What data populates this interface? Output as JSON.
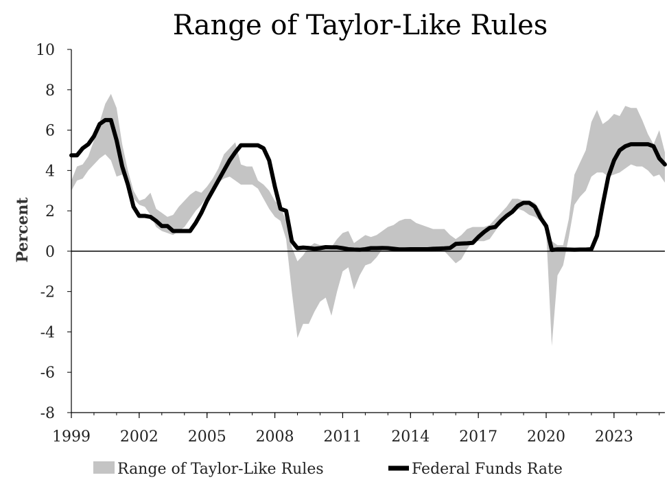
{
  "chart_data": {
    "type": "area",
    "title": "Range of Taylor-Like Rules",
    "xlabel": "",
    "ylabel": "Percent",
    "xlim": [
      1999.0,
      2025.25
    ],
    "ylim": [
      -8,
      10
    ],
    "y_ticks": [
      -8,
      -6,
      -4,
      -2,
      0,
      2,
      4,
      6,
      8,
      10
    ],
    "x_ticks": [
      1999,
      2002,
      2005,
      2008,
      2011,
      2014,
      2017,
      2020,
      2023
    ],
    "x_tick_labels": [
      "1999",
      "2002",
      "2005",
      "2008",
      "2011",
      "2014",
      "2017",
      "2020",
      "2023"
    ],
    "zero_line": true,
    "grid": false,
    "legend_position": "bottom",
    "colors": {
      "range": "#c4c4c4",
      "fed_funds": "#000000"
    },
    "series": [
      {
        "name": "Range of Taylor-Like Rules",
        "kind": "band",
        "x": [
          1999.0,
          1999.25,
          1999.5,
          1999.75,
          2000.0,
          2000.25,
          2000.5,
          2000.75,
          2001.0,
          2001.25,
          2001.5,
          2001.75,
          2002.0,
          2002.25,
          2002.5,
          2002.75,
          2003.0,
          2003.25,
          2003.5,
          2003.75,
          2004.0,
          2004.25,
          2004.5,
          2004.75,
          2005.0,
          2005.25,
          2005.5,
          2005.75,
          2006.0,
          2006.25,
          2006.5,
          2006.75,
          2007.0,
          2007.25,
          2007.5,
          2007.75,
          2008.0,
          2008.25,
          2008.5,
          2008.75,
          2009.0,
          2009.25,
          2009.5,
          2009.75,
          2010.0,
          2010.25,
          2010.5,
          2010.75,
          2011.0,
          2011.25,
          2011.5,
          2011.75,
          2012.0,
          2012.25,
          2012.5,
          2012.75,
          2013.0,
          2013.25,
          2013.5,
          2013.75,
          2014.0,
          2014.25,
          2014.5,
          2014.75,
          2015.0,
          2015.25,
          2015.5,
          2015.75,
          2016.0,
          2016.25,
          2016.5,
          2016.75,
          2017.0,
          2017.25,
          2017.5,
          2017.75,
          2018.0,
          2018.25,
          2018.5,
          2018.75,
          2019.0,
          2019.25,
          2019.5,
          2019.75,
          2020.0,
          2020.25,
          2020.5,
          2020.75,
          2021.0,
          2021.25,
          2021.5,
          2021.75,
          2022.0,
          2022.25,
          2022.5,
          2022.75,
          2023.0,
          2023.25,
          2023.5,
          2023.75,
          2024.0,
          2024.25,
          2024.5,
          2024.75,
          2025.0,
          2025.25
        ],
        "low": [
          3.0,
          3.5,
          3.6,
          4.0,
          4.3,
          4.6,
          4.8,
          4.5,
          3.7,
          3.8,
          3.2,
          2.6,
          2.3,
          2.2,
          1.8,
          1.2,
          1.0,
          0.9,
          0.8,
          1.0,
          1.2,
          1.6,
          2.0,
          2.3,
          2.7,
          3.1,
          3.4,
          3.6,
          3.7,
          3.5,
          3.3,
          3.3,
          3.3,
          3.1,
          2.6,
          2.1,
          1.7,
          1.5,
          0.6,
          -2.0,
          -4.3,
          -3.6,
          -3.6,
          -3.0,
          -2.5,
          -2.3,
          -3.2,
          -2.0,
          -1.0,
          -0.8,
          -1.9,
          -1.2,
          -0.7,
          -0.6,
          -0.3,
          0.1,
          0.1,
          0.1,
          0.1,
          0.1,
          0.2,
          0.2,
          0.1,
          0.0,
          0.0,
          0.0,
          0.0,
          -0.3,
          -0.6,
          -0.4,
          0.1,
          0.5,
          0.5,
          0.5,
          0.6,
          1.0,
          1.4,
          1.8,
          2.1,
          2.1,
          2.0,
          1.8,
          1.7,
          1.5,
          1.0,
          -4.7,
          -1.2,
          -0.7,
          0.7,
          2.3,
          2.7,
          3.0,
          3.7,
          3.9,
          3.9,
          3.7,
          3.8,
          3.9,
          4.1,
          4.3,
          4.2,
          4.2,
          4.0,
          3.7,
          3.8,
          3.4
        ],
        "high": [
          3.5,
          4.2,
          4.3,
          4.7,
          5.5,
          6.4,
          7.3,
          7.8,
          7.1,
          5.3,
          4.0,
          3.0,
          2.5,
          2.6,
          2.9,
          2.1,
          1.9,
          1.7,
          1.8,
          2.2,
          2.5,
          2.8,
          3.0,
          2.9,
          3.2,
          3.6,
          4.1,
          4.8,
          5.1,
          5.4,
          4.3,
          4.2,
          4.2,
          3.5,
          3.3,
          3.0,
          2.5,
          2.2,
          1.5,
          0.2,
          -0.5,
          -0.2,
          0.2,
          0.4,
          0.3,
          0.3,
          0.2,
          0.6,
          0.9,
          1.0,
          0.4,
          0.6,
          0.8,
          0.7,
          0.8,
          1.0,
          1.2,
          1.3,
          1.5,
          1.6,
          1.6,
          1.4,
          1.3,
          1.2,
          1.1,
          1.1,
          1.1,
          0.8,
          0.6,
          0.8,
          1.1,
          1.2,
          1.2,
          1.2,
          1.3,
          1.6,
          1.9,
          2.2,
          2.6,
          2.6,
          2.5,
          2.5,
          2.4,
          2.0,
          1.3,
          0.5,
          0.3,
          0.3,
          1.6,
          3.8,
          4.4,
          5.0,
          6.4,
          7.0,
          6.3,
          6.5,
          6.8,
          6.7,
          7.2,
          7.1,
          7.1,
          6.5,
          5.8,
          5.3,
          6.0,
          4.9
        ]
      },
      {
        "name": "Federal Funds Rate",
        "kind": "line",
        "x": [
          1999.0,
          1999.25,
          1999.5,
          1999.75,
          2000.0,
          2000.25,
          2000.5,
          2000.75,
          2001.0,
          2001.25,
          2001.5,
          2001.75,
          2002.0,
          2002.25,
          2002.5,
          2002.75,
          2003.0,
          2003.25,
          2003.5,
          2003.75,
          2004.0,
          2004.25,
          2004.5,
          2004.75,
          2005.0,
          2005.25,
          2005.5,
          2005.75,
          2006.0,
          2006.25,
          2006.5,
          2006.75,
          2007.0,
          2007.25,
          2007.5,
          2007.75,
          2008.0,
          2008.25,
          2008.5,
          2008.75,
          2009.0,
          2009.25,
          2009.5,
          2009.75,
          2010.0,
          2010.25,
          2010.5,
          2010.75,
          2011.0,
          2011.25,
          2011.5,
          2011.75,
          2012.0,
          2012.25,
          2012.5,
          2012.75,
          2013.0,
          2013.25,
          2013.5,
          2013.75,
          2014.0,
          2014.25,
          2014.5,
          2014.75,
          2015.0,
          2015.25,
          2015.5,
          2015.75,
          2016.0,
          2016.25,
          2016.5,
          2016.75,
          2017.0,
          2017.25,
          2017.5,
          2017.75,
          2018.0,
          2018.25,
          2018.5,
          2018.75,
          2019.0,
          2019.25,
          2019.5,
          2019.75,
          2020.0,
          2020.25,
          2020.5,
          2020.75,
          2021.0,
          2021.25,
          2021.5,
          2021.75,
          2022.0,
          2022.25,
          2022.5,
          2022.75,
          2023.0,
          2023.25,
          2023.5,
          2023.75,
          2024.0,
          2024.25,
          2024.5,
          2024.75,
          2025.0,
          2025.25
        ],
        "y": [
          4.75,
          4.75,
          5.1,
          5.3,
          5.7,
          6.3,
          6.5,
          6.5,
          5.5,
          4.2,
          3.3,
          2.2,
          1.75,
          1.75,
          1.7,
          1.5,
          1.25,
          1.25,
          1.0,
          1.0,
          1.0,
          1.0,
          1.4,
          1.9,
          2.5,
          3.0,
          3.5,
          4.0,
          4.5,
          4.9,
          5.25,
          5.25,
          5.25,
          5.25,
          5.1,
          4.5,
          3.2,
          2.1,
          2.0,
          0.5,
          0.15,
          0.18,
          0.16,
          0.12,
          0.15,
          0.2,
          0.19,
          0.19,
          0.15,
          0.1,
          0.08,
          0.07,
          0.1,
          0.15,
          0.15,
          0.16,
          0.15,
          0.12,
          0.09,
          0.09,
          0.1,
          0.1,
          0.1,
          0.1,
          0.12,
          0.13,
          0.14,
          0.16,
          0.36,
          0.38,
          0.39,
          0.41,
          0.7,
          0.95,
          1.15,
          1.2,
          1.5,
          1.75,
          1.95,
          2.25,
          2.4,
          2.4,
          2.2,
          1.65,
          1.25,
          0.06,
          0.09,
          0.09,
          0.08,
          0.07,
          0.08,
          0.08,
          0.1,
          0.77,
          2.3,
          3.7,
          4.5,
          5.0,
          5.2,
          5.3,
          5.3,
          5.3,
          5.3,
          5.2,
          4.6,
          4.3
        ]
      }
    ]
  }
}
